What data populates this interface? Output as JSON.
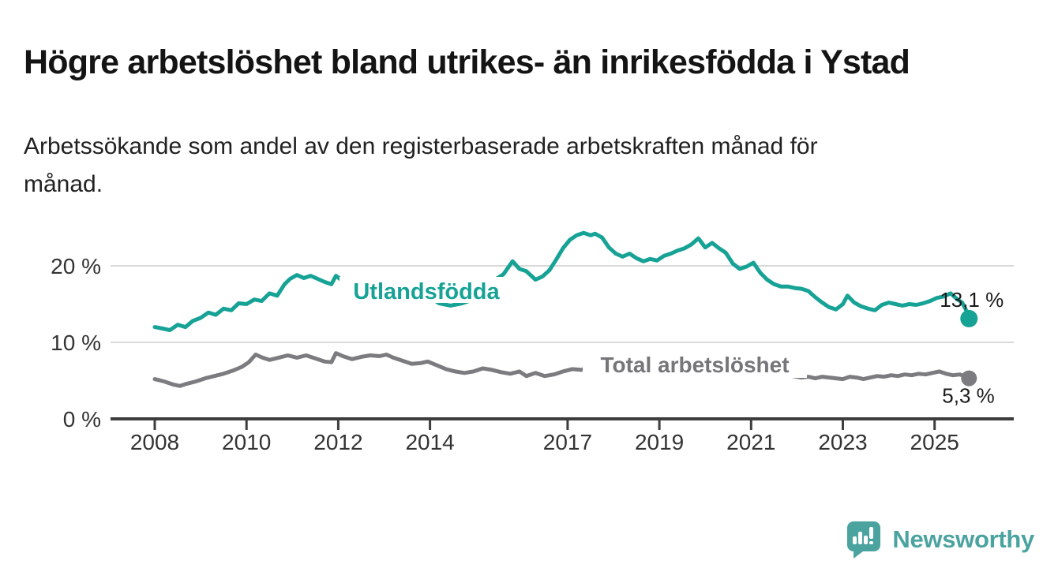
{
  "title": "Högre arbetslöshet bland utrikes- än inrikesfödda i Ystad",
  "subtitle": "Arbetssökande som andel av den registerbaserade arbetskraften månad för månad.",
  "subtitle_lines": [
    "Arbetssökande som andel av den registerbaserade arbetskraften månad för",
    "månad."
  ],
  "branding": {
    "wordmark": "Newsworthy",
    "brand_color": "#4BA3A0",
    "icon": "bar-chart-speech-bubble"
  },
  "chart_data": {
    "type": "line",
    "title": "Högre arbetslöshet bland utrikes- än inrikesfödda i Ystad",
    "subtitle": "Arbetssökande som andel av den registerbaserade arbetskraften månad för månad.",
    "xlabel": "",
    "ylabel": "",
    "grid": "horizontal",
    "legend_position": "inline-labels",
    "x_axis": {
      "unit": "year",
      "domain": [
        2007.0,
        2026.7
      ],
      "ticks": [
        2008,
        2010,
        2012,
        2014,
        2017,
        2019,
        2021,
        2023,
        2025
      ]
    },
    "y_axis": {
      "unit": "%",
      "domain": [
        0,
        25.5
      ],
      "ticks": [
        {
          "value": 0,
          "label": "0 %"
        },
        {
          "value": 10,
          "label": "10 %"
        },
        {
          "value": 20,
          "label": "20 %"
        }
      ]
    },
    "series": [
      {
        "name": "Utlandsfödda",
        "label": "Utlandsfödda",
        "color": "#17A296",
        "end_label": "13,1 %",
        "end_value": 13.1,
        "points": [
          [
            2008.0,
            12.0
          ],
          [
            2008.17,
            11.8
          ],
          [
            2008.33,
            11.6
          ],
          [
            2008.5,
            12.3
          ],
          [
            2008.67,
            12.0
          ],
          [
            2008.83,
            12.8
          ],
          [
            2009.0,
            13.2
          ],
          [
            2009.17,
            13.9
          ],
          [
            2009.33,
            13.6
          ],
          [
            2009.5,
            14.4
          ],
          [
            2009.67,
            14.2
          ],
          [
            2009.83,
            15.1
          ],
          [
            2010.0,
            15.0
          ],
          [
            2010.17,
            15.6
          ],
          [
            2010.33,
            15.4
          ],
          [
            2010.5,
            16.4
          ],
          [
            2010.67,
            16.1
          ],
          [
            2010.83,
            17.6
          ],
          [
            2010.95,
            18.3
          ],
          [
            2011.1,
            18.8
          ],
          [
            2011.25,
            18.4
          ],
          [
            2011.4,
            18.7
          ],
          [
            2011.55,
            18.3
          ],
          [
            2011.7,
            17.9
          ],
          [
            2011.85,
            17.6
          ],
          [
            2011.95,
            18.7
          ],
          [
            2012.1,
            18.0
          ],
          [
            2012.25,
            17.4
          ],
          [
            2012.4,
            17.9
          ],
          [
            2012.55,
            18.2
          ],
          [
            2012.7,
            17.8
          ],
          [
            2012.85,
            17.5
          ],
          [
            2013.0,
            17.3
          ],
          [
            2013.2,
            17.0
          ],
          [
            2013.4,
            16.7
          ],
          [
            2013.6,
            16.5
          ],
          [
            2013.8,
            16.2
          ],
          [
            2014.0,
            15.9
          ],
          [
            2014.2,
            15.1
          ],
          [
            2014.45,
            14.8
          ],
          [
            2014.7,
            15.1
          ],
          [
            2014.9,
            15.5
          ],
          [
            2015.1,
            16.2
          ],
          [
            2015.3,
            17.0
          ],
          [
            2015.45,
            18.3
          ],
          [
            2015.6,
            18.9
          ],
          [
            2015.8,
            20.6
          ],
          [
            2015.95,
            19.6
          ],
          [
            2016.1,
            19.3
          ],
          [
            2016.3,
            18.2
          ],
          [
            2016.45,
            18.6
          ],
          [
            2016.6,
            19.4
          ],
          [
            2016.75,
            20.8
          ],
          [
            2016.9,
            22.3
          ],
          [
            2017.05,
            23.4
          ],
          [
            2017.2,
            24.0
          ],
          [
            2017.35,
            24.3
          ],
          [
            2017.5,
            24.0
          ],
          [
            2017.6,
            24.2
          ],
          [
            2017.75,
            23.7
          ],
          [
            2017.9,
            22.4
          ],
          [
            2018.05,
            21.6
          ],
          [
            2018.2,
            21.2
          ],
          [
            2018.35,
            21.6
          ],
          [
            2018.5,
            21.0
          ],
          [
            2018.65,
            20.6
          ],
          [
            2018.8,
            20.9
          ],
          [
            2018.95,
            20.7
          ],
          [
            2019.1,
            21.3
          ],
          [
            2019.25,
            21.6
          ],
          [
            2019.4,
            22.0
          ],
          [
            2019.55,
            22.3
          ],
          [
            2019.7,
            22.8
          ],
          [
            2019.85,
            23.6
          ],
          [
            2020.0,
            22.4
          ],
          [
            2020.15,
            23.0
          ],
          [
            2020.3,
            22.3
          ],
          [
            2020.45,
            21.7
          ],
          [
            2020.6,
            20.3
          ],
          [
            2020.75,
            19.6
          ],
          [
            2020.9,
            19.9
          ],
          [
            2021.05,
            20.4
          ],
          [
            2021.2,
            19.1
          ],
          [
            2021.35,
            18.2
          ],
          [
            2021.5,
            17.6
          ],
          [
            2021.65,
            17.3
          ],
          [
            2021.8,
            17.3
          ],
          [
            2021.95,
            17.1
          ],
          [
            2022.1,
            17.0
          ],
          [
            2022.25,
            16.7
          ],
          [
            2022.4,
            15.9
          ],
          [
            2022.55,
            15.2
          ],
          [
            2022.7,
            14.6
          ],
          [
            2022.85,
            14.3
          ],
          [
            2023.0,
            15.0
          ],
          [
            2023.1,
            16.1
          ],
          [
            2023.25,
            15.2
          ],
          [
            2023.4,
            14.7
          ],
          [
            2023.55,
            14.4
          ],
          [
            2023.7,
            14.2
          ],
          [
            2023.85,
            14.9
          ],
          [
            2024.0,
            15.2
          ],
          [
            2024.15,
            15.0
          ],
          [
            2024.3,
            14.8
          ],
          [
            2024.45,
            15.0
          ],
          [
            2024.6,
            14.9
          ],
          [
            2024.75,
            15.1
          ],
          [
            2024.9,
            15.4
          ],
          [
            2025.05,
            15.8
          ],
          [
            2025.2,
            16.0
          ],
          [
            2025.35,
            16.4
          ],
          [
            2025.5,
            15.6
          ],
          [
            2025.6,
            15.2
          ],
          [
            2025.68,
            14.3
          ],
          [
            2025.75,
            13.1
          ]
        ]
      },
      {
        "name": "Total arbetslöshet",
        "label": "Total arbetslöshet",
        "color": "#7C7C80",
        "end_label": "5,3 %",
        "end_value": 5.3,
        "points": [
          [
            2008.0,
            5.2
          ],
          [
            2008.2,
            4.9
          ],
          [
            2008.4,
            4.5
          ],
          [
            2008.55,
            4.3
          ],
          [
            2008.7,
            4.6
          ],
          [
            2008.9,
            4.9
          ],
          [
            2009.1,
            5.3
          ],
          [
            2009.3,
            5.6
          ],
          [
            2009.5,
            5.9
          ],
          [
            2009.7,
            6.3
          ],
          [
            2009.9,
            6.8
          ],
          [
            2010.05,
            7.4
          ],
          [
            2010.2,
            8.4
          ],
          [
            2010.35,
            8.0
          ],
          [
            2010.5,
            7.7
          ],
          [
            2010.7,
            8.0
          ],
          [
            2010.9,
            8.3
          ],
          [
            2011.1,
            8.0
          ],
          [
            2011.3,
            8.3
          ],
          [
            2011.5,
            7.9
          ],
          [
            2011.7,
            7.5
          ],
          [
            2011.85,
            7.4
          ],
          [
            2011.95,
            8.6
          ],
          [
            2012.1,
            8.2
          ],
          [
            2012.3,
            7.8
          ],
          [
            2012.5,
            8.1
          ],
          [
            2012.7,
            8.3
          ],
          [
            2012.9,
            8.2
          ],
          [
            2013.05,
            8.4
          ],
          [
            2013.2,
            8.0
          ],
          [
            2013.4,
            7.6
          ],
          [
            2013.6,
            7.2
          ],
          [
            2013.8,
            7.3
          ],
          [
            2013.95,
            7.5
          ],
          [
            2014.15,
            7.0
          ],
          [
            2014.35,
            6.5
          ],
          [
            2014.55,
            6.2
          ],
          [
            2014.75,
            6.0
          ],
          [
            2014.95,
            6.2
          ],
          [
            2015.15,
            6.6
          ],
          [
            2015.35,
            6.4
          ],
          [
            2015.55,
            6.1
          ],
          [
            2015.75,
            5.9
          ],
          [
            2015.95,
            6.2
          ],
          [
            2016.1,
            5.6
          ],
          [
            2016.3,
            6.0
          ],
          [
            2016.5,
            5.6
          ],
          [
            2016.7,
            5.8
          ],
          [
            2016.9,
            6.2
          ],
          [
            2017.1,
            6.5
          ],
          [
            2017.3,
            6.4
          ],
          [
            2017.5,
            6.8
          ],
          [
            2017.7,
            6.9
          ],
          [
            2017.9,
            6.7
          ],
          [
            2018.1,
            6.5
          ],
          [
            2018.3,
            6.3
          ],
          [
            2018.5,
            6.2
          ],
          [
            2018.7,
            6.4
          ],
          [
            2018.9,
            6.6
          ],
          [
            2019.1,
            6.8
          ],
          [
            2019.3,
            7.0
          ],
          [
            2019.5,
            7.1
          ],
          [
            2019.7,
            7.2
          ],
          [
            2019.9,
            7.4
          ],
          [
            2020.1,
            7.7
          ],
          [
            2020.3,
            7.9
          ],
          [
            2020.5,
            7.8
          ],
          [
            2020.7,
            7.5
          ],
          [
            2020.9,
            7.2
          ],
          [
            2021.1,
            6.8
          ],
          [
            2021.3,
            6.4
          ],
          [
            2021.5,
            6.1
          ],
          [
            2021.7,
            5.8
          ],
          [
            2021.9,
            5.6
          ],
          [
            2022.1,
            5.4
          ],
          [
            2022.25,
            5.5
          ],
          [
            2022.4,
            5.3
          ],
          [
            2022.55,
            5.5
          ],
          [
            2022.7,
            5.4
          ],
          [
            2022.85,
            5.3
          ],
          [
            2023.0,
            5.2
          ],
          [
            2023.15,
            5.5
          ],
          [
            2023.3,
            5.4
          ],
          [
            2023.45,
            5.2
          ],
          [
            2023.6,
            5.4
          ],
          [
            2023.75,
            5.6
          ],
          [
            2023.9,
            5.5
          ],
          [
            2024.05,
            5.7
          ],
          [
            2024.2,
            5.6
          ],
          [
            2024.35,
            5.8
          ],
          [
            2024.5,
            5.7
          ],
          [
            2024.65,
            5.9
          ],
          [
            2024.8,
            5.8
          ],
          [
            2024.95,
            6.0
          ],
          [
            2025.1,
            6.2
          ],
          [
            2025.25,
            5.9
          ],
          [
            2025.4,
            5.7
          ],
          [
            2025.55,
            5.8
          ],
          [
            2025.7,
            5.5
          ],
          [
            2025.75,
            5.3
          ]
        ]
      }
    ],
    "colors": {
      "axis": "#3D3D3D",
      "gridline": "#D9D9D9",
      "tick_text": "#333333",
      "value_label_text": "#1A1A1A"
    }
  }
}
